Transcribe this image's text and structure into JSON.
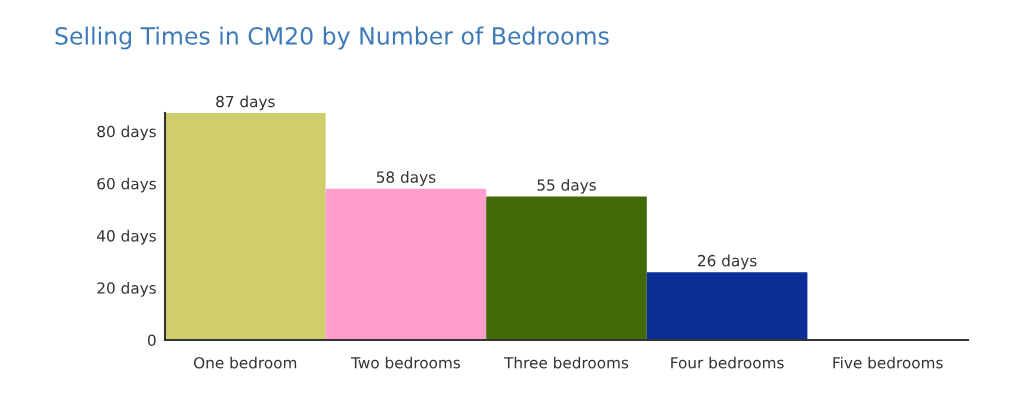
{
  "chart_data": {
    "type": "bar",
    "title": "Selling Times in CM20 by Number of Bedrooms",
    "categories": [
      "One bedroom",
      "Two bedrooms",
      "Three bedrooms",
      "Four bedrooms",
      "Five bedrooms"
    ],
    "values": [
      87,
      58,
      55,
      26,
      null
    ],
    "colors": [
      "#d0cd6b",
      "#ff9ecf",
      "#3f6a06",
      "#0a2f96",
      "#888888"
    ],
    "value_labels": [
      "87 days",
      "58 days",
      "55 days",
      "26 days",
      null
    ],
    "ylim": [
      0,
      87
    ],
    "yticks": [
      0,
      {
        "value": 20,
        "label": "20 days"
      },
      {
        "value": 40,
        "label": "40 days"
      },
      {
        "value": 60,
        "label": "60 days"
      },
      {
        "value": 80,
        "label": "80 days"
      }
    ],
    "grid": false
  }
}
